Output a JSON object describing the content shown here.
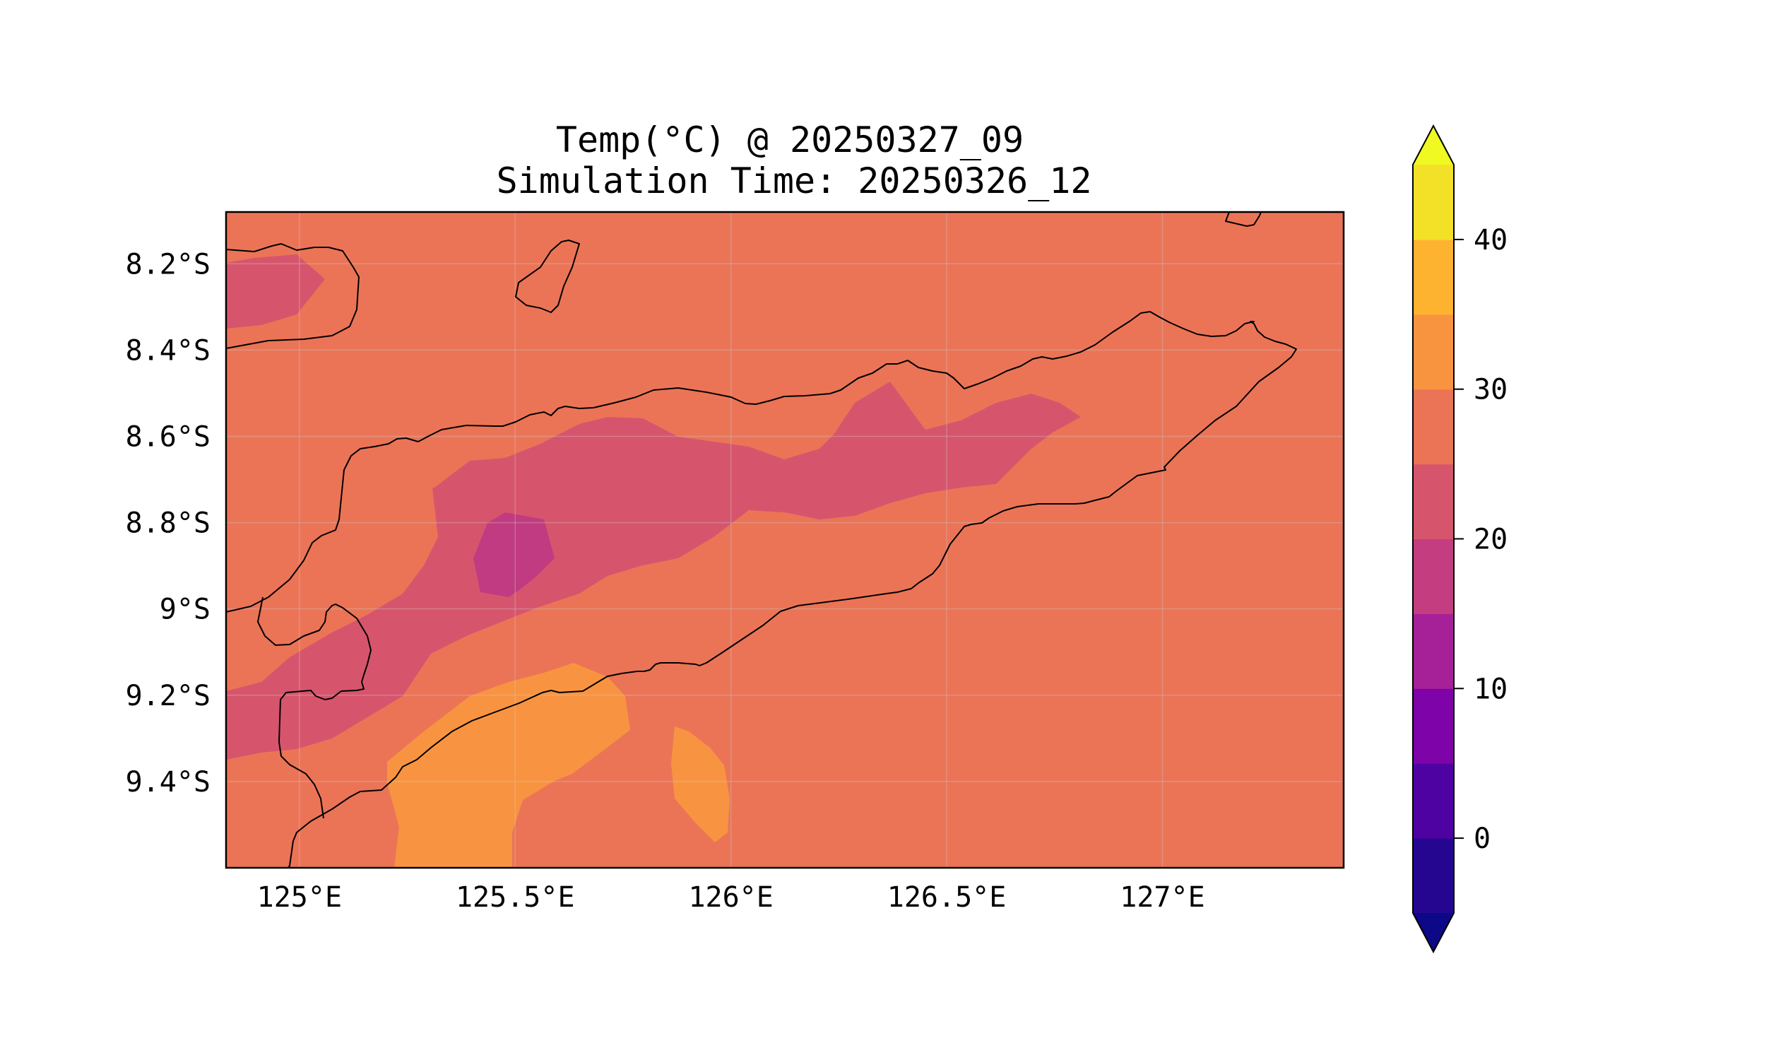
{
  "title_line1": "Temp(°C) @ 20250327_09",
  "title_line2": "Simulation Time: 20250326_12",
  "colors": {
    "background_band": "#eb7457",
    "band_20_25": "#d6556d",
    "band_15_20": "#c13b82",
    "band_30_35": "#f89441",
    "band_35_40": "#fdb32f"
  },
  "chart_data": {
    "type": "heatmap",
    "map_extent": {
      "lon": [
        124.83,
        127.42
      ],
      "lat": [
        -9.6,
        -8.08
      ]
    },
    "x_ticks": [
      {
        "value": 125.0,
        "label": "125°E"
      },
      {
        "value": 125.5,
        "label": "125.5°E"
      },
      {
        "value": 126.0,
        "label": "126°E"
      },
      {
        "value": 126.5,
        "label": "126.5°E"
      },
      {
        "value": 127.0,
        "label": "127°E"
      }
    ],
    "y_ticks": [
      {
        "value": -8.2,
        "label": "8.2°S"
      },
      {
        "value": -8.4,
        "label": "8.4°S"
      },
      {
        "value": -8.6,
        "label": "8.6°S"
      },
      {
        "value": -8.8,
        "label": "8.8°S"
      },
      {
        "value": -9.0,
        "label": "9°S"
      },
      {
        "value": -9.2,
        "label": "9.2°S"
      },
      {
        "value": -9.4,
        "label": "9.4°S"
      }
    ],
    "grid": true,
    "colorbar": {
      "placement": "right",
      "extend": "both",
      "range": [
        -5,
        45
      ],
      "levels": [
        -5,
        0,
        5,
        10,
        15,
        20,
        25,
        30,
        35,
        40,
        45
      ],
      "colors": [
        "#240691",
        "#4e02a2",
        "#7e03a8",
        "#a62098",
        "#c33d80",
        "#d6556d",
        "#eb7457",
        "#f8943f",
        "#fdb32f",
        "#f3e127"
      ],
      "under_color": "#0d0887",
      "over_color": "#f0f921",
      "ticks": [
        {
          "value": 0,
          "label": "0"
        },
        {
          "value": 10,
          "label": "10"
        },
        {
          "value": 20,
          "label": "20"
        },
        {
          "value": 30,
          "label": "30"
        },
        {
          "value": 40,
          "label": "40"
        }
      ]
    }
  }
}
